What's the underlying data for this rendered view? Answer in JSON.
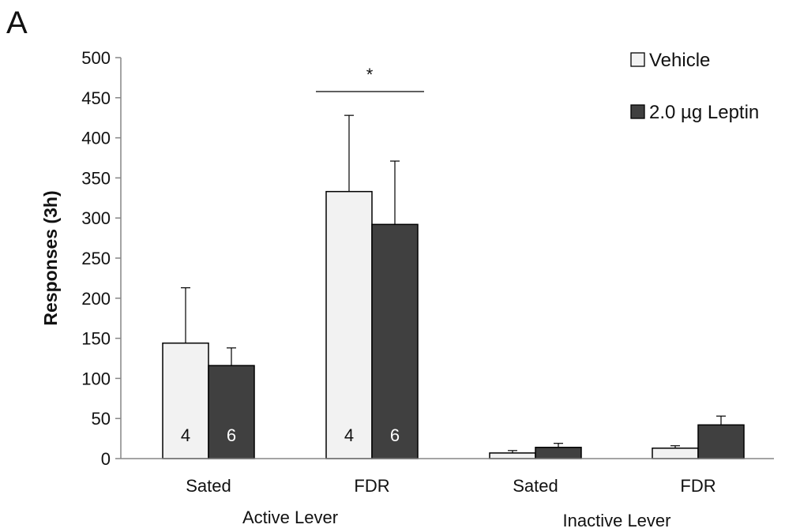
{
  "chart_data": {
    "type": "bar",
    "panel_label": "A",
    "title": "",
    "xlabel": "",
    "ylabel": "Responses (3h)",
    "ylim": [
      0,
      500
    ],
    "yticks": [
      0,
      50,
      100,
      150,
      200,
      250,
      300,
      350,
      400,
      450,
      500
    ],
    "grid": false,
    "legend_position": "top-right",
    "categories": [
      "Sated",
      "FDR",
      "Sated",
      "FDR"
    ],
    "groups": [
      {
        "label": "Active Lever",
        "categories": [
          0,
          1
        ]
      },
      {
        "label": "Inactive Lever",
        "categories": [
          2,
          3
        ]
      }
    ],
    "series": [
      {
        "name": "Vehicle",
        "color": "#f2f2f2",
        "values": [
          144,
          333,
          7,
          13
        ],
        "errors": [
          69,
          95,
          3,
          3
        ],
        "n_labels": [
          "4",
          "4",
          "",
          ""
        ],
        "n_label_color": "#111111"
      },
      {
        "name": "2.0 µg Leptin",
        "color": "#404040",
        "values": [
          116,
          292,
          14,
          42
        ],
        "errors": [
          22,
          79,
          5,
          11
        ],
        "n_labels": [
          "6",
          "6",
          "",
          ""
        ],
        "n_label_color": "#ffffff"
      }
    ],
    "annotations": [
      {
        "text": "*",
        "category": 1
      }
    ]
  }
}
